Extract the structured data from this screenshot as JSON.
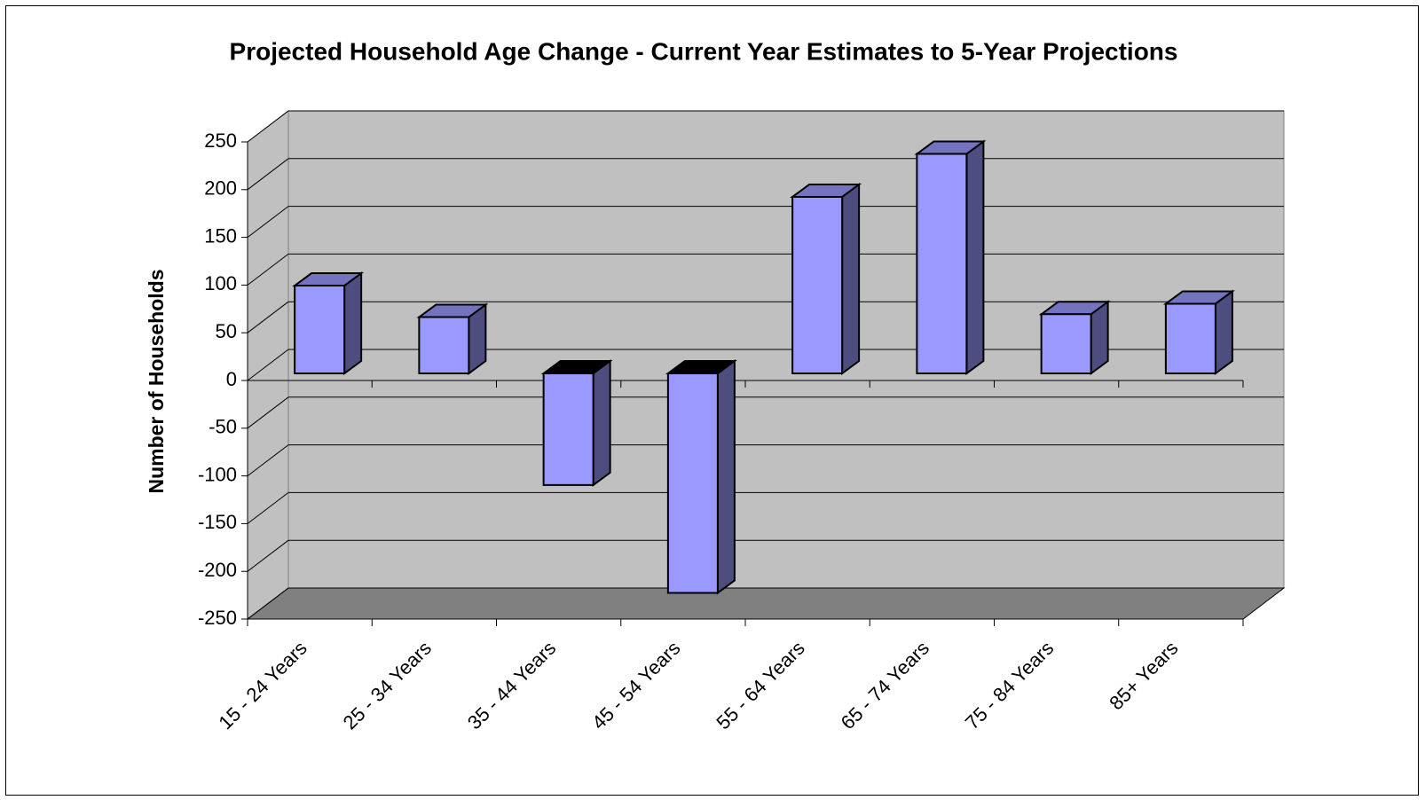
{
  "chart_data": {
    "type": "bar3d",
    "title": "Projected Household Age Change - Current Year Estimates to 5-Year Projections",
    "y_label": "Number of Households",
    "categories": [
      "15 - 24 Years",
      "25 - 34 Years",
      "35 - 44 Years",
      "45 - 54 Years",
      "55 - 64 Years",
      "65 - 74 Years",
      "75 - 84 Years",
      "85+ Years"
    ],
    "values": [
      92,
      59,
      -117,
      -230,
      185,
      230,
      62,
      73
    ],
    "color": "#9999ff",
    "ylim": [
      -250,
      250
    ],
    "yticks": [
      -250,
      -200,
      -150,
      -100,
      -50,
      0,
      50,
      100,
      150,
      200,
      250
    ],
    "grid": true
  }
}
